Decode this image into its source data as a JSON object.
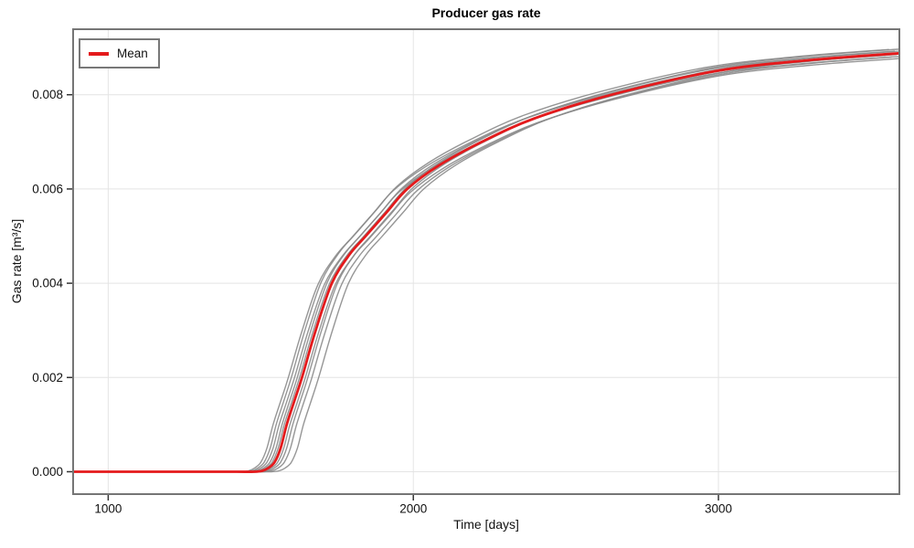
{
  "title": "Producer gas rate",
  "legend": {
    "label": "Mean",
    "position": "top-left"
  },
  "colors": {
    "mean_line": "#e41a1c",
    "ensemble_line": "#8b8b8b",
    "grid": "#e4e4e4",
    "frame": "#757575",
    "tick": "#333333",
    "text": "#111111",
    "background": "#ffffff"
  },
  "chart_data": {
    "type": "line",
    "title": "Producer gas rate",
    "xlabel": "Time [days]",
    "ylabel": "Gas rate [m³/s]",
    "xlim": [
      885,
      3593
    ],
    "ylim": [
      -0.000475,
      0.00939
    ],
    "xticks": [
      1000,
      2000,
      3000
    ],
    "yticks": [
      0.0,
      0.002,
      0.004,
      0.006,
      0.008
    ],
    "ytick_decimals": 3,
    "grid": true,
    "legend_position": "top-left",
    "series": [
      {
        "name": "Mean",
        "role": "mean",
        "color": "#e41a1c",
        "width": 2.8,
        "points": [
          [
            500,
            0.0
          ],
          [
            885,
            0.0
          ],
          [
            1100,
            0.0
          ],
          [
            1300,
            0.0
          ],
          [
            1420,
            0.0
          ],
          [
            1480,
            0.0
          ],
          [
            1505,
            2e-05
          ],
          [
            1525,
            8e-05
          ],
          [
            1545,
            0.0002
          ],
          [
            1565,
            0.0005
          ],
          [
            1585,
            0.001
          ],
          [
            1610,
            0.0015
          ],
          [
            1635,
            0.002
          ],
          [
            1680,
            0.003
          ],
          [
            1733,
            0.004
          ],
          [
            1790,
            0.0046
          ],
          [
            1844,
            0.005
          ],
          [
            1912,
            0.0055
          ],
          [
            1980,
            0.006
          ],
          [
            2084,
            0.0065
          ],
          [
            2225,
            0.007
          ],
          [
            2398,
            0.0075
          ],
          [
            2650,
            0.008
          ],
          [
            2990,
            0.0085
          ],
          [
            3290,
            0.00873
          ],
          [
            3593,
            0.00888
          ]
        ]
      }
    ],
    "ensemble": {
      "role": "realizations",
      "color": "#8b8b8b",
      "width": 1.4,
      "opacity": 0.9,
      "derived_from": "Mean",
      "members": [
        {
          "time_shift_days": -45,
          "value_scale": 0.995
        },
        {
          "time_shift_days": -34,
          "value_scale": 1.009
        },
        {
          "time_shift_days": -25,
          "value_scale": 0.991
        },
        {
          "time_shift_days": -15,
          "value_scale": 1.005
        },
        {
          "time_shift_days": -8,
          "value_scale": 0.997
        },
        {
          "time_shift_days": 2,
          "value_scale": 1.01
        },
        {
          "time_shift_days": 10,
          "value_scale": 0.988
        },
        {
          "time_shift_days": 20,
          "value_scale": 1.006
        },
        {
          "time_shift_days": 32,
          "value_scale": 0.994
        },
        {
          "time_shift_days": 55,
          "value_scale": 1.001
        }
      ]
    }
  }
}
